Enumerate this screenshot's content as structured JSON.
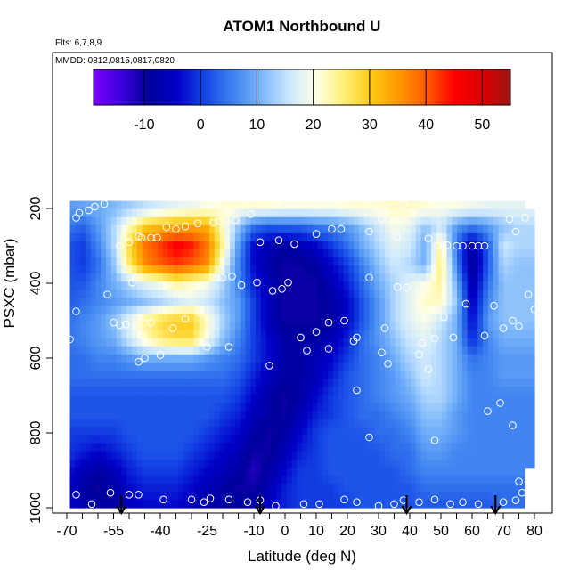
{
  "chart_data": {
    "type": "heatmap",
    "title": "ATOM1 Northbound U",
    "subtitle": "Flts: 6,7,8,9",
    "annotation": "MMDD: 0812,0815,0817,0820",
    "xlabel": "Latitude (deg N)",
    "ylabel": "PSXC (mbar)",
    "xlim": [
      -70,
      83
    ],
    "ylim": [
      1020,
      120
    ],
    "y_reversed": true,
    "x_ticks": [
      -70,
      -55,
      -40,
      -25,
      -10,
      0,
      10,
      20,
      30,
      40,
      50,
      60,
      70,
      80
    ],
    "y_ticks": [
      200,
      400,
      600,
      800,
      1000
    ],
    "colorbar": {
      "min": -19,
      "max": 55,
      "ticks": [
        -10,
        0,
        10,
        20,
        30,
        40,
        50
      ],
      "colors": [
        "#7b00ff",
        "#3c00dc",
        "#00009b",
        "#0000c8",
        "#1446e6",
        "#3c82f0",
        "#78b4fa",
        "#c8e6ff",
        "#ffffe6",
        "#fff078",
        "#ffc814",
        "#ff9600",
        "#ff5a00",
        "#ff0000",
        "#dc0000",
        "#9b1414"
      ]
    },
    "field": {
      "lat_nodes": [
        -70,
        -65,
        -60,
        -55,
        -50,
        -45,
        -40,
        -35,
        -30,
        -25,
        -20,
        -15,
        -10,
        -5,
        0,
        5,
        10,
        15,
        20,
        25,
        30,
        35,
        40,
        45,
        50,
        55,
        60,
        65,
        70,
        75,
        80
      ],
      "pressure_levels": [
        200,
        250,
        300,
        350,
        400,
        450,
        500,
        550,
        600,
        650,
        700,
        750,
        800,
        850,
        900,
        950,
        1000
      ],
      "values": [
        [
          8,
          9,
          10,
          11,
          13,
          15,
          17,
          18,
          19,
          20,
          21,
          21,
          21,
          21,
          20,
          20,
          20,
          20,
          21,
          21,
          21,
          22,
          22,
          21,
          20,
          20,
          19,
          18,
          18,
          18,
          18
        ],
        [
          5,
          3,
          8,
          14,
          22,
          30,
          32,
          34,
          34,
          33,
          22,
          12,
          4,
          2,
          3,
          3,
          5,
          6,
          8,
          12,
          16,
          20,
          18,
          12,
          16,
          8,
          5,
          8,
          12,
          14,
          14
        ],
        [
          2,
          0,
          6,
          14,
          28,
          38,
          42,
          46,
          44,
          38,
          24,
          8,
          -4,
          -6,
          -8,
          -6,
          -4,
          0,
          4,
          10,
          14,
          18,
          16,
          10,
          24,
          4,
          -8,
          2,
          16,
          14,
          14
        ],
        [
          2,
          0,
          4,
          12,
          26,
          36,
          40,
          42,
          40,
          36,
          20,
          6,
          -4,
          -8,
          -10,
          -10,
          -8,
          -4,
          0,
          6,
          12,
          16,
          14,
          10,
          26,
          6,
          -10,
          2,
          14,
          12,
          12
        ],
        [
          2,
          2,
          6,
          10,
          14,
          18,
          20,
          24,
          22,
          20,
          14,
          6,
          -2,
          -6,
          -10,
          -10,
          -10,
          -6,
          -2,
          4,
          10,
          14,
          18,
          20,
          24,
          10,
          -8,
          4,
          12,
          12,
          12
        ],
        [
          2,
          4,
          6,
          8,
          10,
          12,
          14,
          16,
          18,
          16,
          12,
          8,
          0,
          -6,
          -10,
          -10,
          -10,
          -8,
          -4,
          2,
          8,
          14,
          18,
          22,
          22,
          12,
          -6,
          6,
          12,
          12,
          12
        ],
        [
          4,
          6,
          8,
          12,
          18,
          24,
          28,
          30,
          30,
          22,
          14,
          8,
          0,
          -6,
          -10,
          -10,
          -10,
          -8,
          -4,
          2,
          8,
          14,
          18,
          20,
          16,
          10,
          -4,
          8,
          12,
          12,
          12
        ],
        [
          4,
          6,
          8,
          10,
          16,
          22,
          26,
          28,
          28,
          20,
          12,
          6,
          0,
          -4,
          -8,
          -8,
          -8,
          -6,
          -2,
          4,
          8,
          12,
          16,
          18,
          14,
          10,
          -2,
          6,
          10,
          10,
          10
        ],
        [
          4,
          4,
          6,
          6,
          8,
          10,
          10,
          10,
          10,
          8,
          6,
          4,
          0,
          -4,
          -8,
          -8,
          -6,
          -4,
          0,
          4,
          6,
          10,
          14,
          16,
          14,
          10,
          4,
          6,
          8,
          8,
          8
        ],
        [
          4,
          4,
          4,
          4,
          4,
          4,
          4,
          4,
          4,
          4,
          4,
          2,
          -2,
          -6,
          -8,
          -8,
          -6,
          -2,
          2,
          4,
          6,
          8,
          12,
          16,
          14,
          10,
          6,
          6,
          8,
          8,
          8
        ],
        [
          2,
          2,
          2,
          2,
          2,
          2,
          2,
          2,
          2,
          2,
          2,
          0,
          -4,
          -8,
          -10,
          -8,
          -4,
          0,
          2,
          4,
          6,
          8,
          10,
          14,
          14,
          10,
          6,
          6,
          6,
          6,
          6
        ],
        [
          2,
          2,
          2,
          2,
          2,
          2,
          2,
          2,
          2,
          2,
          0,
          -2,
          -6,
          -8,
          -10,
          -6,
          -2,
          0,
          2,
          4,
          4,
          6,
          8,
          12,
          12,
          8,
          6,
          6,
          6,
          6,
          6
        ],
        [
          0,
          0,
          0,
          0,
          2,
          2,
          2,
          2,
          2,
          0,
          -2,
          -4,
          -8,
          -10,
          -8,
          -4,
          0,
          2,
          2,
          2,
          4,
          4,
          6,
          10,
          10,
          8,
          6,
          6,
          6,
          6,
          6
        ],
        [
          0,
          -2,
          -4,
          -2,
          0,
          2,
          2,
          2,
          0,
          -2,
          -4,
          -6,
          -10,
          -10,
          -6,
          -2,
          0,
          2,
          2,
          2,
          2,
          4,
          4,
          8,
          8,
          6,
          6,
          6,
          6,
          6,
          6
        ],
        [
          -2,
          -6,
          -8,
          -6,
          -2,
          0,
          0,
          0,
          -2,
          -4,
          -6,
          -8,
          -12,
          -8,
          -4,
          0,
          0,
          2,
          2,
          2,
          2,
          2,
          4,
          6,
          6,
          6,
          6,
          6,
          6,
          6,
          6
        ],
        [
          -4,
          -8,
          -10,
          -8,
          -4,
          -2,
          -2,
          -2,
          -4,
          -6,
          -8,
          -10,
          -10,
          -6,
          -2,
          0,
          0,
          0,
          2,
          2,
          2,
          2,
          2,
          4,
          4,
          4,
          4,
          4,
          4,
          4,
          4
        ],
        [
          -4,
          -6,
          -8,
          -8,
          -6,
          -4,
          -4,
          -4,
          -6,
          -8,
          -8,
          -8,
          -6,
          -4,
          -2,
          0,
          0,
          0,
          0,
          2,
          2,
          2,
          2,
          2,
          2,
          2,
          2,
          2,
          4,
          4,
          4
        ]
      ],
      "top_pressure": 180,
      "bottom_pressure": 1000
    },
    "observation_points": [
      [
        -67,
        225
      ],
      [
        -66,
        212
      ],
      [
        -63,
        205
      ],
      [
        -61,
        195
      ],
      [
        -58,
        188
      ],
      [
        -53,
        300
      ],
      [
        -50,
        290
      ],
      [
        -47,
        275
      ],
      [
        -46,
        278
      ],
      [
        -43,
        278
      ],
      [
        -41,
        278
      ],
      [
        -38,
        250
      ],
      [
        -35,
        255
      ],
      [
        -32,
        248
      ],
      [
        -28,
        240
      ],
      [
        -23,
        238
      ],
      [
        -21,
        235
      ],
      [
        -16,
        232
      ],
      [
        -11,
        215
      ],
      [
        -8,
        290
      ],
      [
        -2,
        285
      ],
      [
        3,
        295
      ],
      [
        10,
        268
      ],
      [
        15,
        255
      ],
      [
        18,
        255
      ],
      [
        27,
        262
      ],
      [
        31,
        228
      ],
      [
        36,
        275
      ],
      [
        38,
        188
      ],
      [
        46,
        280
      ],
      [
        49,
        300
      ],
      [
        52,
        298
      ],
      [
        55,
        300
      ],
      [
        57,
        300
      ],
      [
        60,
        300
      ],
      [
        62,
        300
      ],
      [
        64,
        300
      ],
      [
        72,
        228
      ],
      [
        74,
        262
      ],
      [
        77,
        225
      ],
      [
        -57,
        430
      ],
      [
        -55,
        505
      ],
      [
        -53,
        512
      ],
      [
        -51,
        510
      ],
      [
        -49,
        398
      ],
      [
        -46,
        540
      ],
      [
        -43,
        505
      ],
      [
        -36,
        520
      ],
      [
        -32,
        495
      ],
      [
        -27,
        480
      ],
      [
        -20,
        385
      ],
      [
        -17,
        382
      ],
      [
        -14,
        405
      ],
      [
        -9,
        398
      ],
      [
        -4,
        420
      ],
      [
        -1,
        415
      ],
      [
        1,
        398
      ],
      [
        5,
        545
      ],
      [
        10,
        530
      ],
      [
        14,
        505
      ],
      [
        19,
        500
      ],
      [
        23,
        545
      ],
      [
        27,
        385
      ],
      [
        32,
        520
      ],
      [
        36,
        410
      ],
      [
        39,
        412
      ],
      [
        44,
        560
      ],
      [
        48,
        548
      ],
      [
        51,
        490
      ],
      [
        54,
        545
      ],
      [
        58,
        455
      ],
      [
        64,
        540
      ],
      [
        67,
        460
      ],
      [
        70,
        520
      ],
      [
        73,
        500
      ],
      [
        75,
        515
      ],
      [
        78,
        430
      ],
      [
        80,
        470
      ],
      [
        -67,
        475
      ],
      [
        -69,
        550
      ],
      [
        -47,
        610
      ],
      [
        -45,
        600
      ],
      [
        -40,
        592
      ],
      [
        -25,
        570
      ],
      [
        -18,
        570
      ],
      [
        -5,
        620
      ],
      [
        7,
        580
      ],
      [
        14,
        575
      ],
      [
        22,
        555
      ],
      [
        31,
        585
      ],
      [
        33,
        615
      ],
      [
        43,
        590
      ],
      [
        46,
        630
      ],
      [
        65,
        742
      ],
      [
        69,
        720
      ],
      [
        73,
        780
      ],
      [
        75,
        930
      ],
      [
        80,
        910
      ],
      [
        23,
        686
      ],
      [
        27,
        812
      ],
      [
        48,
        820
      ],
      [
        -67,
        965
      ],
      [
        -62,
        990
      ],
      [
        -56,
        960
      ],
      [
        -50,
        965
      ],
      [
        -47,
        965
      ],
      [
        -39,
        978
      ],
      [
        -30,
        978
      ],
      [
        -26,
        985
      ],
      [
        -24,
        975
      ],
      [
        -18,
        978
      ],
      [
        -12,
        985
      ],
      [
        -8,
        980
      ],
      [
        -3,
        995
      ],
      [
        6,
        990
      ],
      [
        11,
        990
      ],
      [
        19,
        978
      ],
      [
        23,
        985
      ],
      [
        30,
        995
      ],
      [
        35,
        990
      ],
      [
        38,
        980
      ],
      [
        43,
        985
      ],
      [
        48,
        978
      ],
      [
        53,
        990
      ],
      [
        57,
        985
      ],
      [
        62,
        990
      ],
      [
        70,
        985
      ],
      [
        74,
        980
      ],
      [
        76,
        960
      ]
    ],
    "flight_arrows_lat": [
      -52.5,
      -8,
      39,
      67.5
    ]
  }
}
